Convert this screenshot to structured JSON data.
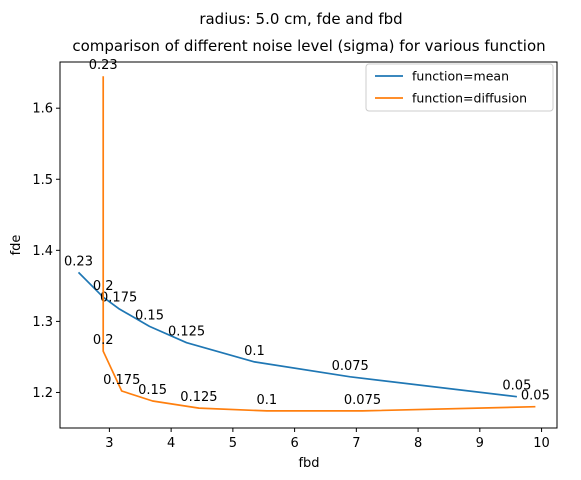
{
  "chart_data": {
    "type": "line",
    "suptitle": "radius: 5.0 cm, fde and fbd",
    "title": "comparison of different noise level (sigma) for various function",
    "xlabel": "fbd",
    "ylabel": "fde",
    "xlim": [
      2.2,
      10.25
    ],
    "ylim": [
      1.15,
      1.665
    ],
    "xticks": [
      3,
      4,
      5,
      6,
      7,
      8,
      9,
      10
    ],
    "yticks": [
      1.2,
      1.3,
      1.4,
      1.5,
      1.6
    ],
    "ytick_labels": [
      "1.2",
      "1.3",
      "1.4",
      "1.5",
      "1.6"
    ],
    "grid": false,
    "legend_position": "top-right",
    "series": [
      {
        "name": "function=mean",
        "color": "#1f77b4",
        "points": [
          {
            "x": 2.5,
            "y": 1.369,
            "label": "0.23"
          },
          {
            "x": 2.9,
            "y": 1.334,
            "label": "0.2"
          },
          {
            "x": 3.15,
            "y": 1.318,
            "label": "0.175"
          },
          {
            "x": 3.65,
            "y": 1.293,
            "label": "0.15"
          },
          {
            "x": 4.25,
            "y": 1.27,
            "label": "0.125"
          },
          {
            "x": 5.35,
            "y": 1.243,
            "label": "0.1"
          },
          {
            "x": 6.9,
            "y": 1.222,
            "label": "0.075"
          },
          {
            "x": 9.6,
            "y": 1.194,
            "label": "0.05"
          }
        ]
      },
      {
        "name": "function=diffusion",
        "color": "#ff7f0e",
        "points": [
          {
            "x": 2.9,
            "y": 1.645,
            "label": "0.23"
          },
          {
            "x": 2.9,
            "y": 1.258,
            "label": "0.2"
          },
          {
            "x": 3.2,
            "y": 1.202,
            "label": "0.175"
          },
          {
            "x": 3.7,
            "y": 1.188,
            "label": "0.15"
          },
          {
            "x": 4.45,
            "y": 1.178,
            "label": "0.125"
          },
          {
            "x": 5.55,
            "y": 1.174,
            "label": "0.1"
          },
          {
            "x": 7.1,
            "y": 1.174,
            "label": "0.075"
          },
          {
            "x": 9.9,
            "y": 1.18,
            "label": "0.05"
          }
        ]
      }
    ]
  }
}
